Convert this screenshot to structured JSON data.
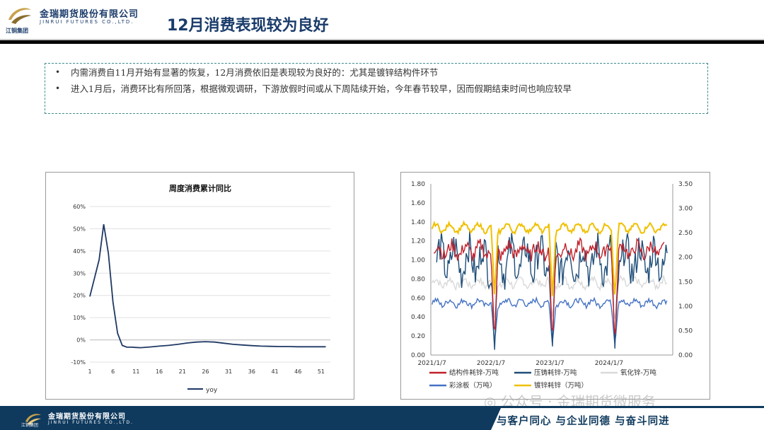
{
  "header": {
    "company_cn": "金瑞期货股份有限公司",
    "company_en": "JINRUI FUTURES CO.,LTD.",
    "group_name": "江铜集团",
    "title": "12月消费表现较为良好"
  },
  "notes": [
    {
      "text": "内需消费自11月开始有显著的恢复，12月消费依旧是表现较为良好的：尤其是镀锌结构件环节"
    },
    {
      "text": "进入1月后，消费环比有所回落，根据微观调研，下游放假时间或从下周陆续开始，今年春节较早，因而假期结束时间也响应较早"
    }
  ],
  "chart_data": [
    {
      "type": "line",
      "title": "周度消费累计同比",
      "x_ticks": [
        1,
        6,
        11,
        16,
        21,
        26,
        31,
        36,
        41,
        46,
        51
      ],
      "y_ticks": [
        "60%",
        "50%",
        "40%",
        "30%",
        "20%",
        "10%",
        "0%",
        "-10%"
      ],
      "ylim": [
        -10,
        60
      ],
      "xlim": [
        1,
        53
      ],
      "grid": true,
      "legend_position": "bottom",
      "series": [
        {
          "name": "yoy",
          "color": "#1f3864",
          "x": [
            1,
            3,
            4,
            5,
            6,
            7,
            8,
            9,
            10,
            11,
            12,
            14,
            16,
            18,
            20,
            22,
            24,
            26,
            28,
            30,
            32,
            34,
            36,
            38,
            40,
            42,
            44,
            46,
            48,
            50,
            52
          ],
          "values": [
            19.5,
            36,
            52,
            39,
            17,
            3,
            -2.5,
            -3.3,
            -3.3,
            -3.4,
            -3.5,
            -3.2,
            -2.8,
            -2.5,
            -2,
            -1.4,
            -1,
            -0.8,
            -1,
            -1.5,
            -2,
            -2.3,
            -2.6,
            -2.8,
            -2.9,
            -3,
            -3,
            -3.1,
            -3.1,
            -3.1,
            -3.1
          ]
        }
      ]
    },
    {
      "type": "line",
      "x_ticks": [
        "2021/1/7",
        "2022/1/7",
        "2023/1/7",
        "2024/1/7"
      ],
      "y_left_ticks": [
        "1.80",
        "1.60",
        "1.40",
        "1.20",
        "1.00",
        "0.80",
        "0.60",
        "0.40",
        "0.20",
        "0.00"
      ],
      "y_right_ticks": [
        "3.50",
        "3.00",
        "2.50",
        "2.00",
        "1.50",
        "1.00",
        "0.50",
        "0.00"
      ],
      "ylim_left": [
        0,
        1.8
      ],
      "ylim_right": [
        0,
        3.5
      ],
      "xlim_years": [
        2021.0,
        2025.1
      ],
      "grid": false,
      "legend_position": "bottom",
      "series": [
        {
          "name": "结构件耗锌-万吨",
          "color": "#c0202a",
          "axis": "left"
        },
        {
          "name": "压铸耗锌-万吨",
          "color": "#1f4e79",
          "axis": "left"
        },
        {
          "name": "氧化锌-万吨",
          "color": "#d9d9d9",
          "axis": "left"
        },
        {
          "name": "彩涂板（万吨）",
          "color": "#4472c4",
          "axis": "left"
        },
        {
          "name": "镀锌耗锌（万吨）",
          "color": "#f0c000",
          "axis": "right"
        }
      ]
    }
  ],
  "footer": {
    "slogan": "与客户同心 与企业同德 与奋斗同进",
    "watermark": "公众号 · 金瑞期货微服务"
  }
}
